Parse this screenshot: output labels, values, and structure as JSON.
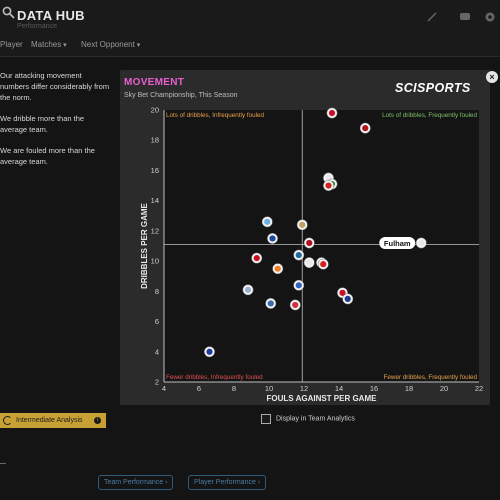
{
  "app": {
    "title": "DATA HUB",
    "subtitle": "Performance"
  },
  "nav": {
    "items": [
      "Player",
      "Matches",
      "Next Opponent"
    ]
  },
  "insights": [
    "Our attacking movement numbers differ considerably from the norm.",
    "We dribble more than the average team.",
    "We are fouled more than the average team."
  ],
  "analysis_button": {
    "label": "Intermediate Analysis"
  },
  "card": {
    "title": "MOVEMENT",
    "subtitle": "Sky Bet Championship, This Season",
    "brand": "SCISPORTS",
    "close": "×"
  },
  "display_toggle": {
    "label": "Display in Team Analytics",
    "checked": false
  },
  "footer": {
    "buttons": [
      "Team Performance",
      "Player Performance"
    ]
  },
  "colors": {
    "accent_title": "#e85fd0",
    "quadrant_top_left": "#e8a24c",
    "quadrant_top_right": "#7ec46a",
    "quadrant_bottom_left": "#e05050",
    "quadrant_bottom_right": "#e8a24c",
    "button_gold": "#c8a135",
    "footer_link": "#4a7ca6"
  },
  "chart_data": {
    "type": "scatter",
    "xlabel": "FOULS AGAINST PER GAME",
    "ylabel": "DRIBBLES PER GAME",
    "xlim": [
      4,
      22
    ],
    "ylim": [
      2,
      20
    ],
    "x_ticks": [
      4,
      6,
      8,
      10,
      12,
      14,
      16,
      18,
      20,
      22
    ],
    "y_ticks": [
      2,
      4,
      6,
      8,
      10,
      12,
      14,
      16,
      18,
      20
    ],
    "average_x": 11.9,
    "average_y": 11.1,
    "grid": false,
    "quadrant_labels": {
      "top_left": "Lots of dribbles, Infrequently fouled",
      "top_right": "Lots of dribbles, Frequently fouled",
      "bottom_left": "Fewer dribbles, Infrequently fouled",
      "bottom_right": "Fewer dribbles, Frequently fouled"
    },
    "highlight": {
      "label": "Fulham",
      "x": 18.7,
      "y": 11.2
    },
    "points": [
      {
        "x": 13.6,
        "y": 19.8,
        "color": "#c8102e"
      },
      {
        "x": 15.5,
        "y": 18.8,
        "color": "#b01020"
      },
      {
        "x": 13.4,
        "y": 15.5,
        "color": "#e8e8e8"
      },
      {
        "x": 13.6,
        "y": 15.1,
        "color": "#1e8a3c"
      },
      {
        "x": 13.4,
        "y": 15.0,
        "color": "#d02020"
      },
      {
        "x": 11.9,
        "y": 12.4,
        "color": "#c0a060"
      },
      {
        "x": 9.9,
        "y": 12.6,
        "color": "#6ab0e0"
      },
      {
        "x": 10.2,
        "y": 11.5,
        "color": "#1e4a9a"
      },
      {
        "x": 12.3,
        "y": 11.2,
        "color": "#b01020"
      },
      {
        "x": 11.7,
        "y": 10.4,
        "color": "#1e6aa0"
      },
      {
        "x": 12.3,
        "y": 9.9,
        "color": "#e8e8e8"
      },
      {
        "x": 13.0,
        "y": 9.9,
        "color": "#1e60b0"
      },
      {
        "x": 13.1,
        "y": 9.8,
        "color": "#d02020"
      },
      {
        "x": 9.3,
        "y": 10.2,
        "color": "#c81020"
      },
      {
        "x": 10.5,
        "y": 9.5,
        "color": "#f08020"
      },
      {
        "x": 11.7,
        "y": 8.4,
        "color": "#3060c0"
      },
      {
        "x": 8.8,
        "y": 8.1,
        "color": "#9ab0d0"
      },
      {
        "x": 10.1,
        "y": 7.2,
        "color": "#3a6ab0"
      },
      {
        "x": 11.5,
        "y": 7.1,
        "color": "#d03040"
      },
      {
        "x": 14.2,
        "y": 7.9,
        "color": "#c81020"
      },
      {
        "x": 14.5,
        "y": 7.5,
        "color": "#1e3a8a"
      },
      {
        "x": 6.6,
        "y": 4.0,
        "color": "#1e3aa0"
      },
      {
        "x": 18.7,
        "y": 11.2,
        "color": "#e8e8e8"
      }
    ]
  }
}
